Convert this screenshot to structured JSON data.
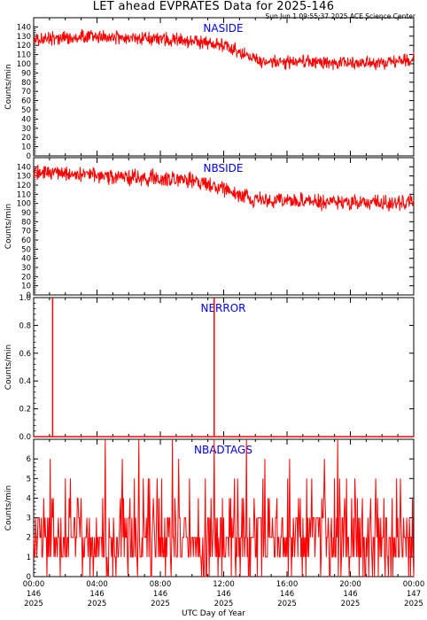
{
  "figure": {
    "title": "LET ahead EVPRATES Data for 2025-146",
    "timestamp": "Sun Jun  1 09:55:37 2025 ACE Science Center",
    "xlabel": "UTC Day of Year"
  },
  "colors": {
    "data": "#ff0000",
    "panel_label": "#0000ee",
    "axis": "#000000"
  },
  "chart_data": [
    {
      "type": "line",
      "name": "NASIDE",
      "ylabel": "Counts/min",
      "ylim": [
        0,
        150
      ],
      "yticks": [
        "0",
        "10",
        "20",
        "30",
        "40",
        "50",
        "60",
        "70",
        "80",
        "90",
        "100",
        "110",
        "120",
        "130",
        "140"
      ],
      "xlim": [
        0,
        24
      ],
      "x": [
        0,
        1,
        2,
        3,
        4,
        5,
        6,
        7,
        8,
        9,
        10,
        11,
        12,
        13,
        14,
        15,
        16,
        17,
        18,
        19,
        20,
        21,
        22,
        23,
        24
      ],
      "values": [
        126,
        127,
        128,
        129,
        130,
        129,
        128,
        127,
        127,
        126,
        125,
        121,
        120,
        114,
        104,
        103,
        102,
        102,
        102,
        101,
        101,
        100,
        101,
        102,
        105
      ],
      "noise": 11
    },
    {
      "type": "line",
      "name": "NBSIDE",
      "ylabel": "Counts/min",
      "ylim": [
        0,
        150
      ],
      "yticks": [
        "0",
        "10",
        "20",
        "30",
        "40",
        "50",
        "60",
        "70",
        "80",
        "90",
        "100",
        "110",
        "120",
        "130",
        "140"
      ],
      "xlim": [
        0,
        24
      ],
      "x": [
        0,
        1,
        2,
        3,
        4,
        5,
        6,
        7,
        8,
        9,
        10,
        11,
        12,
        13,
        14,
        15,
        16,
        17,
        18,
        19,
        20,
        21,
        22,
        23,
        24
      ],
      "values": [
        133,
        134,
        133,
        132,
        131,
        130,
        129,
        128,
        128,
        127,
        125,
        120,
        116,
        110,
        104,
        104,
        103,
        103,
        102,
        101,
        101,
        100,
        100,
        100,
        101
      ],
      "noise": 13
    },
    {
      "type": "line",
      "name": "NERROR",
      "ylabel": "Counts/min",
      "ylim": [
        0,
        1
      ],
      "yticks": [
        "0.0",
        "0.2",
        "0.4",
        "0.6",
        "0.8",
        "1.0"
      ],
      "xlim": [
        0,
        24
      ],
      "baseline": 0,
      "spikes": [
        {
          "x": 1.2,
          "y": 1
        },
        {
          "x": 11.4,
          "y": 1
        }
      ]
    },
    {
      "type": "line",
      "name": "NBADTAGS",
      "ylabel": "Counts/min",
      "ylim": [
        0,
        7
      ],
      "yticks": [
        "0",
        "1",
        "2",
        "3",
        "4",
        "5",
        "6"
      ],
      "xlim": [
        0,
        24
      ],
      "distribution": {
        "levels": [
          0,
          1,
          2,
          3,
          4,
          5,
          6,
          7
        ],
        "weights": [
          10,
          26,
          30,
          19,
          9,
          4,
          1.5,
          0.5
        ]
      },
      "peaks": [
        {
          "x": 11.4,
          "y": 7
        },
        {
          "x": 19.2,
          "y": 7
        }
      ]
    }
  ],
  "x_axis": {
    "ticks": [
      {
        "time": "00:00",
        "day": "146",
        "year": "2025"
      },
      {
        "time": "04:00",
        "day": "146",
        "year": "2025"
      },
      {
        "time": "08:00",
        "day": "146",
        "year": "2025"
      },
      {
        "time": "12:00",
        "day": "146",
        "year": "2025"
      },
      {
        "time": "16:00",
        "day": "146",
        "year": "2025"
      },
      {
        "time": "20:00",
        "day": "146",
        "year": "2025"
      },
      {
        "time": "00:00",
        "day": "147",
        "year": "2025"
      }
    ]
  }
}
